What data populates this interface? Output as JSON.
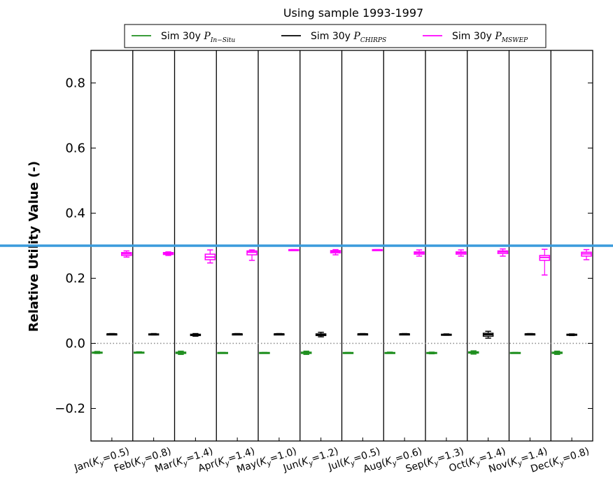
{
  "chart_data": {
    "type": "box",
    "title": "Using sample 1993-1997",
    "ylabel": "Relative Utility Value (-)",
    "ylim": [
      -0.3,
      0.9
    ],
    "yticks": [
      -0.2,
      0.0,
      0.2,
      0.4,
      0.6,
      0.8
    ],
    "ytick_labels": [
      "−0.2",
      "0.0",
      "0.2",
      "0.4",
      "0.6",
      "0.8"
    ],
    "grid": false,
    "legend_placement": "top-center",
    "categories": [
      {
        "month": "Jan",
        "ky": "0.5"
      },
      {
        "month": "Feb",
        "ky": "0.8"
      },
      {
        "month": "Mar",
        "ky": "1.4"
      },
      {
        "month": "Apr",
        "ky": "1.4"
      },
      {
        "month": "May",
        "ky": "1.0"
      },
      {
        "month": "Jun",
        "ky": "1.2"
      },
      {
        "month": "Jul",
        "ky": "0.5"
      },
      {
        "month": "Aug",
        "ky": "0.6"
      },
      {
        "month": "Sep",
        "ky": "1.3"
      },
      {
        "month": "Oct",
        "ky": "1.4"
      },
      {
        "month": "Nov",
        "ky": "1.4"
      },
      {
        "month": "Dec",
        "ky": "0.8"
      }
    ],
    "reference_line": {
      "y": 0.0,
      "style": "dotted",
      "color": "#888888"
    },
    "highlight_line": {
      "y": 0.3,
      "color": "#3a9bdc"
    },
    "series": [
      {
        "name_prefix": "Sim 30y ",
        "name_symbol": "P",
        "name_subscript": "In−Situ",
        "color": "#1f8f1f",
        "boxes": [
          {
            "min": -0.031,
            "q1": -0.029,
            "median": -0.028,
            "q3": -0.027,
            "max": -0.025
          },
          {
            "min": -0.029,
            "q1": -0.028,
            "median": -0.028,
            "q3": -0.027,
            "max": -0.026
          },
          {
            "min": -0.034,
            "q1": -0.031,
            "median": -0.029,
            "q3": -0.027,
            "max": -0.024
          },
          {
            "min": -0.029,
            "q1": -0.029,
            "median": -0.029,
            "q3": -0.028,
            "max": -0.028
          },
          {
            "min": -0.029,
            "q1": -0.029,
            "median": -0.029,
            "q3": -0.028,
            "max": -0.028
          },
          {
            "min": -0.034,
            "q1": -0.031,
            "median": -0.029,
            "q3": -0.027,
            "max": -0.024
          },
          {
            "min": -0.029,
            "q1": -0.029,
            "median": -0.029,
            "q3": -0.028,
            "max": -0.028
          },
          {
            "min": -0.03,
            "q1": -0.029,
            "median": -0.029,
            "q3": -0.028,
            "max": -0.027
          },
          {
            "min": -0.032,
            "q1": -0.03,
            "median": -0.029,
            "q3": -0.028,
            "max": -0.027
          },
          {
            "min": -0.033,
            "q1": -0.03,
            "median": -0.028,
            "q3": -0.026,
            "max": -0.023
          },
          {
            "min": -0.029,
            "q1": -0.029,
            "median": -0.029,
            "q3": -0.028,
            "max": -0.028
          },
          {
            "min": -0.034,
            "q1": -0.031,
            "median": -0.029,
            "q3": -0.027,
            "max": -0.024
          }
        ]
      },
      {
        "name_prefix": "Sim 30y ",
        "name_symbol": "P",
        "name_subscript": "CHIRPS",
        "color": "#000000",
        "boxes": [
          {
            "min": 0.027,
            "q1": 0.028,
            "median": 0.029,
            "q3": 0.029,
            "max": 0.03
          },
          {
            "min": 0.026,
            "q1": 0.027,
            "median": 0.028,
            "q3": 0.029,
            "max": 0.03
          },
          {
            "min": 0.022,
            "q1": 0.024,
            "median": 0.026,
            "q3": 0.028,
            "max": 0.03
          },
          {
            "min": 0.028,
            "q1": 0.029,
            "median": 0.029,
            "q3": 0.029,
            "max": 0.03
          },
          {
            "min": 0.028,
            "q1": 0.029,
            "median": 0.029,
            "q3": 0.029,
            "max": 0.03
          },
          {
            "min": 0.02,
            "q1": 0.024,
            "median": 0.027,
            "q3": 0.029,
            "max": 0.034
          },
          {
            "min": 0.028,
            "q1": 0.029,
            "median": 0.029,
            "q3": 0.029,
            "max": 0.03
          },
          {
            "min": 0.027,
            "q1": 0.028,
            "median": 0.029,
            "q3": 0.029,
            "max": 0.03
          },
          {
            "min": 0.025,
            "q1": 0.026,
            "median": 0.027,
            "q3": 0.028,
            "max": 0.029
          },
          {
            "min": 0.016,
            "q1": 0.022,
            "median": 0.027,
            "q3": 0.031,
            "max": 0.037
          },
          {
            "min": 0.028,
            "q1": 0.029,
            "median": 0.029,
            "q3": 0.029,
            "max": 0.03
          },
          {
            "min": 0.024,
            "q1": 0.026,
            "median": 0.027,
            "q3": 0.028,
            "max": 0.029
          }
        ]
      },
      {
        "name_prefix": "Sim 30y ",
        "name_symbol": "P",
        "name_subscript": "MSWEP",
        "color": "#ff00ff",
        "boxes": [
          {
            "min": 0.265,
            "q1": 0.27,
            "median": 0.275,
            "q3": 0.279,
            "max": 0.284
          },
          {
            "min": 0.27,
            "q1": 0.273,
            "median": 0.276,
            "q3": 0.279,
            "max": 0.281
          },
          {
            "min": 0.247,
            "q1": 0.257,
            "median": 0.265,
            "q3": 0.274,
            "max": 0.287
          },
          {
            "min": 0.255,
            "q1": 0.272,
            "median": 0.28,
            "q3": 0.284,
            "max": 0.287
          },
          {
            "min": 0.286,
            "q1": 0.287,
            "median": 0.287,
            "q3": 0.288,
            "max": 0.288
          },
          {
            "min": 0.272,
            "q1": 0.278,
            "median": 0.282,
            "q3": 0.285,
            "max": 0.288
          },
          {
            "min": 0.286,
            "q1": 0.287,
            "median": 0.287,
            "q3": 0.288,
            "max": 0.288
          },
          {
            "min": 0.268,
            "q1": 0.274,
            "median": 0.278,
            "q3": 0.281,
            "max": 0.287
          },
          {
            "min": 0.268,
            "q1": 0.274,
            "median": 0.278,
            "q3": 0.281,
            "max": 0.287
          },
          {
            "min": 0.268,
            "q1": 0.276,
            "median": 0.281,
            "q3": 0.284,
            "max": 0.29
          },
          {
            "min": 0.21,
            "q1": 0.255,
            "median": 0.264,
            "q3": 0.27,
            "max": 0.289
          },
          {
            "min": 0.257,
            "q1": 0.268,
            "median": 0.275,
            "q3": 0.28,
            "max": 0.288
          }
        ]
      }
    ]
  }
}
